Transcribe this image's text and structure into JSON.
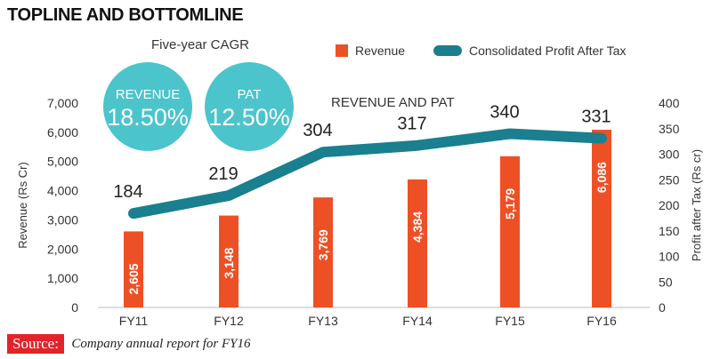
{
  "title": "TOPLINE AND BOTTOMLINE",
  "cagr": {
    "heading": "Five-year CAGR",
    "items": [
      {
        "label": "REVENUE",
        "value": "18.50%"
      },
      {
        "label": "PAT",
        "value": "12.50%"
      }
    ]
  },
  "colors": {
    "bar": "#ee5026",
    "line": "#1a7f8f",
    "circle": "#4cc4cc"
  },
  "chart_data": {
    "type": "bar+line",
    "title": "REVENUE AND PAT",
    "categories": [
      "FY11",
      "FY12",
      "FY13",
      "FY14",
      "FY15",
      "FY16"
    ],
    "series": [
      {
        "name": "Revenue",
        "type": "bar",
        "axis": "left",
        "values": [
          2605,
          3148,
          3769,
          4384,
          5179,
          6086
        ],
        "labels": [
          "2,605",
          "3,148",
          "3,769",
          "4,384",
          "5,179",
          "6,086"
        ]
      },
      {
        "name": "Consolidated Profit After Tax",
        "type": "line",
        "axis": "right",
        "values": [
          184,
          219,
          304,
          317,
          340,
          331
        ],
        "labels": [
          "184",
          "219",
          "304",
          "317",
          "340",
          "331"
        ]
      }
    ],
    "y_left": {
      "label": "Revenue (Rs Cr)",
      "range": [
        0,
        7000
      ],
      "ticks": [
        0,
        1000,
        2000,
        3000,
        4000,
        5000,
        6000,
        7000
      ],
      "tick_labels": [
        "0",
        "1,000",
        "2,000",
        "3,000",
        "4,000",
        "5,000",
        "6,000",
        "7,000"
      ]
    },
    "y_right": {
      "label": "Profit after Tax  (Rs cr)",
      "range": [
        0,
        400
      ],
      "ticks": [
        0,
        50,
        100,
        150,
        200,
        250,
        300,
        350,
        400
      ],
      "tick_labels": [
        "0",
        "50",
        "100",
        "150",
        "200",
        "250",
        "300",
        "350",
        "400"
      ]
    },
    "legend": "top-right",
    "grid": false
  },
  "source": {
    "label": "Source:",
    "text": "Company annual report for FY16"
  }
}
